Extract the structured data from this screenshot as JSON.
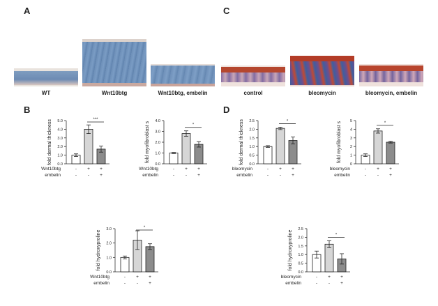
{
  "panels": {
    "a": "A",
    "b": "B",
    "c": "C",
    "d": "D"
  },
  "micrographs": [
    {
      "caption": "WT",
      "stain": "blue-thin"
    },
    {
      "caption": "Wnt10btg",
      "stain": "blue-thick"
    },
    {
      "caption": "Wnt10btg, embelin",
      "stain": "blue-mid"
    },
    {
      "caption": "control",
      "stain": "trichrome-thin"
    },
    {
      "caption": "bleomycin",
      "stain": "trichrome-thick"
    },
    {
      "caption": "bleomycin, embelin",
      "stain": "trichrome-mid"
    }
  ],
  "colors": {
    "bar_fills": [
      "#ffffff",
      "#d6d6d6",
      "#8c8c8c"
    ],
    "axis": "#333333"
  },
  "chart_data": [
    {
      "type": "bar",
      "ylabel": "fold dermal thickness",
      "ylim": [
        0,
        5
      ],
      "yticks": [
        "0.0",
        "1.0",
        "2.0",
        "3.0",
        "4.0",
        "5.0"
      ],
      "values": [
        1.0,
        4.0,
        1.7
      ],
      "errors": [
        0.15,
        0.5,
        0.35
      ],
      "condition_rows": [
        {
          "label": "Wnt10btg",
          "signs": [
            "-",
            "+",
            "+"
          ]
        },
        {
          "label": "embelin",
          "signs": [
            "-",
            "-",
            "+"
          ]
        }
      ],
      "significance": {
        "from": 1,
        "to": 2,
        "label": "***"
      }
    },
    {
      "type": "bar",
      "ylabel": "fold myofibroblast s",
      "ylim": [
        0,
        4
      ],
      "yticks": [
        "0.0",
        "1.0",
        "2.0",
        "3.0",
        "4.0"
      ],
      "values": [
        1.0,
        2.8,
        1.8
      ],
      "errors": [
        0.05,
        0.25,
        0.25
      ],
      "condition_rows": [
        {
          "label": "Wnt10btg",
          "signs": [
            "-",
            "+",
            "+"
          ]
        },
        {
          "label": "embelin",
          "signs": [
            "-",
            "-",
            "+"
          ]
        }
      ],
      "significance": {
        "from": 1,
        "to": 2,
        "label": "*"
      }
    },
    {
      "type": "bar",
      "ylabel": "fold hydroxyproline",
      "ylim": [
        0,
        3
      ],
      "yticks": [
        "0.0",
        "1.0",
        "2.0",
        "3.0"
      ],
      "values": [
        1.0,
        2.2,
        1.75
      ],
      "errors": [
        0.1,
        0.65,
        0.2
      ],
      "condition_rows": [
        {
          "label": "Wnt10btg",
          "signs": [
            "-",
            "+",
            "+"
          ]
        },
        {
          "label": "embelin",
          "signs": [
            "-",
            "-",
            "+"
          ]
        }
      ],
      "significance": {
        "from": 1,
        "to": 2,
        "label": "*"
      }
    },
    {
      "type": "bar",
      "ylabel": "fold dermal thickness",
      "ylim": [
        0,
        2.5
      ],
      "yticks": [
        "0.0",
        "0.5",
        "1.0",
        "1.5",
        "2.0",
        "2.5"
      ],
      "values": [
        1.0,
        2.05,
        1.35
      ],
      "errors": [
        0.05,
        0.07,
        0.2
      ],
      "condition_rows": [
        {
          "label": "bleomycin",
          "signs": [
            "-",
            "+",
            "+"
          ]
        },
        {
          "label": "embelin",
          "signs": [
            "-",
            "-",
            "+"
          ]
        }
      ],
      "significance": {
        "from": 1,
        "to": 2,
        "label": "*"
      }
    },
    {
      "type": "bar",
      "ylabel": "fold myofibroblast s",
      "ylim": [
        0,
        5
      ],
      "yticks": [
        "0",
        "1",
        "2",
        "3",
        "4",
        "5"
      ],
      "values": [
        1.0,
        3.8,
        2.5
      ],
      "errors": [
        0.15,
        0.25,
        0.1
      ],
      "condition_rows": [
        {
          "label": "bleomycin",
          "signs": [
            "-",
            "+",
            "+"
          ]
        },
        {
          "label": "embelin",
          "signs": [
            "-",
            "-",
            "+"
          ]
        }
      ],
      "significance": {
        "from": 1,
        "to": 2,
        "label": "*"
      }
    },
    {
      "type": "bar",
      "ylabel": "fold hydroxyproline",
      "ylim": [
        0,
        2.5
      ],
      "yticks": [
        "0.0",
        "0.5",
        "1.0",
        "1.5",
        "2.0",
        "2.5"
      ],
      "values": [
        1.0,
        1.6,
        0.75
      ],
      "errors": [
        0.2,
        0.2,
        0.3
      ],
      "condition_rows": [
        {
          "label": "bleomycin",
          "signs": [
            "-",
            "+",
            "+"
          ]
        },
        {
          "label": "embelin",
          "signs": [
            "-",
            "-",
            "+"
          ]
        }
      ],
      "significance": {
        "from": 1,
        "to": 2,
        "label": "*"
      }
    }
  ]
}
